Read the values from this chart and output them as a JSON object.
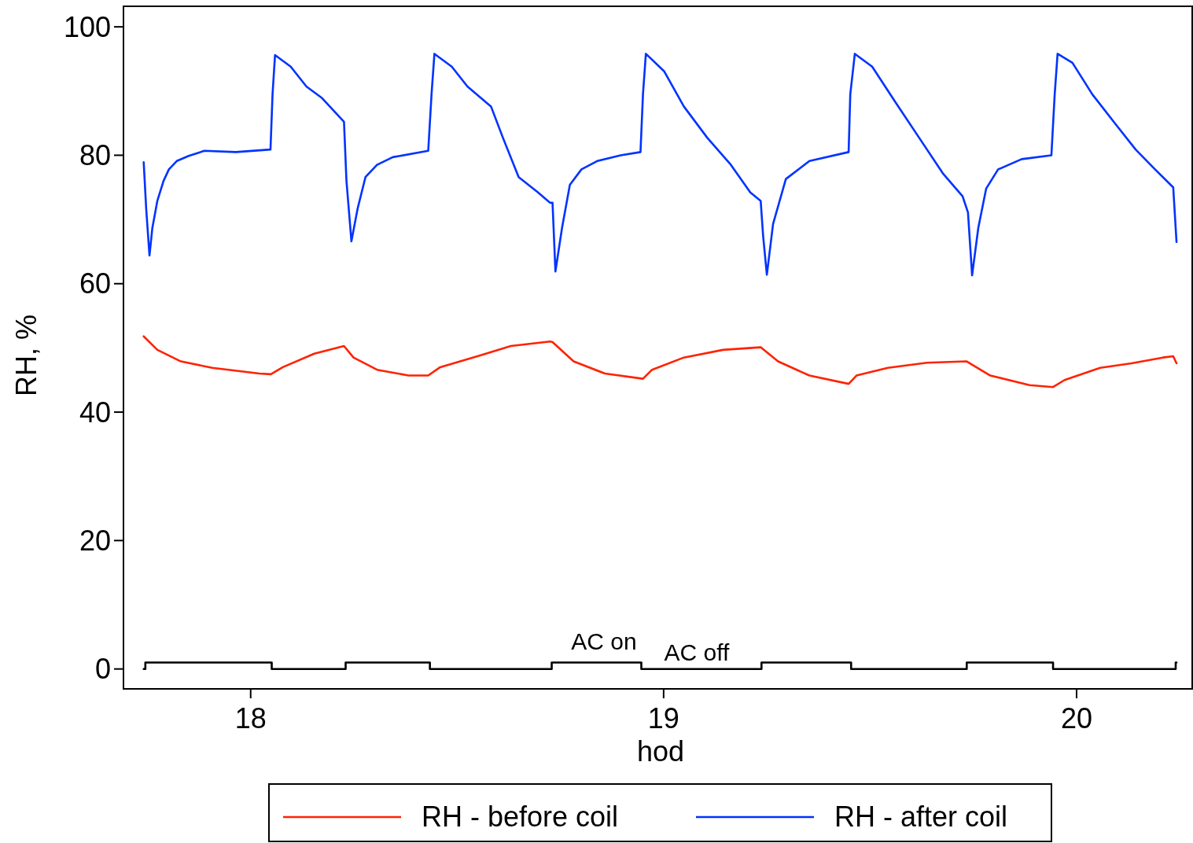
{
  "chart_data": {
    "type": "line",
    "xlabel": "hod",
    "ylabel": "RH, %",
    "xlim": [
      17.692,
      20.28
    ],
    "ylim": [
      -3.1,
      103.2
    ],
    "xticks": [
      18,
      19,
      20
    ],
    "yticks": [
      0,
      20,
      40,
      60,
      80,
      100
    ],
    "grid": false,
    "legend": "bottom",
    "line_style": "solid",
    "marker": "none",
    "series": [
      {
        "name": "RH - before coil",
        "color": "#ff2200",
        "x": [
          17.741,
          17.774,
          17.831,
          17.907,
          18.021,
          18.049,
          18.078,
          18.154,
          18.226,
          18.249,
          18.306,
          18.382,
          18.43,
          18.459,
          18.554,
          18.63,
          18.725,
          18.731,
          18.782,
          18.858,
          18.95,
          18.972,
          19.049,
          19.144,
          19.235,
          19.277,
          19.353,
          19.448,
          19.467,
          19.543,
          19.638,
          19.734,
          19.791,
          19.886,
          19.943,
          19.971,
          20.057,
          20.133,
          20.209,
          20.234,
          20.242
        ],
        "values": [
          51.8,
          49.7,
          47.9,
          46.9,
          46.0,
          45.9,
          47.0,
          49.1,
          50.3,
          48.5,
          46.6,
          45.7,
          45.7,
          47.0,
          48.8,
          50.3,
          51.0,
          50.9,
          47.9,
          46.0,
          45.2,
          46.6,
          48.5,
          49.7,
          50.1,
          47.9,
          45.7,
          44.4,
          45.7,
          46.9,
          47.7,
          47.9,
          45.7,
          44.2,
          43.9,
          45.0,
          46.9,
          47.6,
          48.5,
          48.7,
          47.6
        ]
      },
      {
        "name": "RH - after coil",
        "color": "#0033ff",
        "x": [
          17.741,
          17.747,
          17.755,
          17.762,
          17.774,
          17.789,
          17.802,
          17.821,
          17.85,
          17.888,
          17.964,
          18.048,
          18.053,
          18.059,
          18.097,
          18.135,
          18.173,
          18.226,
          18.232,
          18.244,
          18.259,
          18.278,
          18.306,
          18.344,
          18.43,
          18.438,
          18.445,
          18.487,
          18.525,
          18.582,
          18.611,
          18.649,
          18.696,
          18.725,
          18.731,
          18.738,
          18.754,
          18.773,
          18.801,
          18.839,
          18.896,
          18.944,
          18.95,
          18.957,
          19.001,
          19.049,
          19.106,
          19.163,
          19.21,
          19.235,
          19.241,
          19.25,
          19.265,
          19.296,
          19.353,
          19.448,
          19.452,
          19.463,
          19.505,
          19.562,
          19.619,
          19.676,
          19.724,
          19.737,
          19.747,
          19.762,
          19.781,
          19.81,
          19.867,
          19.939,
          19.947,
          19.954,
          19.99,
          20.038,
          20.095,
          20.143,
          20.19,
          20.234,
          20.242
        ],
        "values": [
          78.9,
          71.7,
          64.4,
          68.7,
          72.9,
          76.0,
          77.8,
          79.1,
          79.9,
          80.7,
          80.5,
          80.9,
          89.5,
          95.6,
          93.8,
          90.7,
          88.9,
          85.2,
          76.0,
          66.6,
          71.7,
          76.6,
          78.5,
          79.7,
          80.7,
          89.5,
          95.8,
          93.8,
          90.7,
          87.6,
          82.7,
          76.6,
          74.2,
          72.6,
          72.6,
          61.9,
          68.7,
          75.4,
          77.8,
          79.1,
          80.0,
          80.5,
          89.5,
          95.8,
          93.1,
          87.6,
          82.7,
          78.5,
          74.2,
          72.9,
          67.4,
          61.4,
          69.3,
          76.3,
          79.1,
          80.5,
          89.5,
          95.8,
          93.8,
          88.2,
          82.7,
          77.2,
          73.6,
          71.1,
          61.3,
          68.7,
          74.8,
          77.8,
          79.4,
          80.0,
          89.5,
          95.8,
          94.4,
          89.5,
          84.8,
          80.9,
          77.8,
          75.0,
          66.5
        ]
      },
      {
        "type": "step",
        "color": "#000000",
        "x": [
          17.741,
          17.745,
          18.051,
          18.23,
          18.434,
          18.729,
          18.946,
          19.237,
          19.454,
          19.734,
          19.943,
          20.24,
          20.242
        ],
        "values": [
          0,
          1,
          0,
          1,
          0,
          1,
          0,
          1,
          0,
          1,
          0,
          1,
          1
        ]
      }
    ],
    "annotations": [
      "AC on",
      "AC off"
    ]
  }
}
